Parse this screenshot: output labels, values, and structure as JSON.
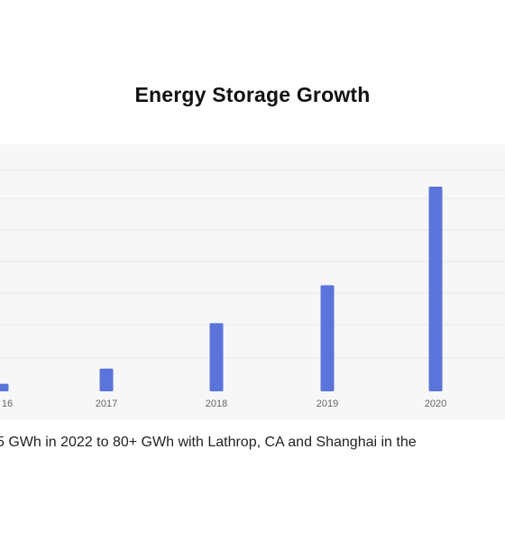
{
  "title": "Energy Storage Growth",
  "caption": "5 GWh in 2022 to 80+ GWh with Lathrop, CA and Shanghai in the",
  "colors": {
    "bar": "#5b74d9",
    "grid": "#e7e7ea",
    "tick_text": "#666666",
    "panel": "#f7f7f8"
  },
  "chart_data": {
    "type": "bar",
    "title": "Energy Storage Growth",
    "categories": [
      "16",
      "2017",
      "2018",
      "2019",
      "2020"
    ],
    "values": [
      0.1,
      0.3,
      0.9,
      1.4,
      2.7
    ],
    "ylim": [
      0,
      3.2
    ],
    "grid": true,
    "legend": "none"
  }
}
